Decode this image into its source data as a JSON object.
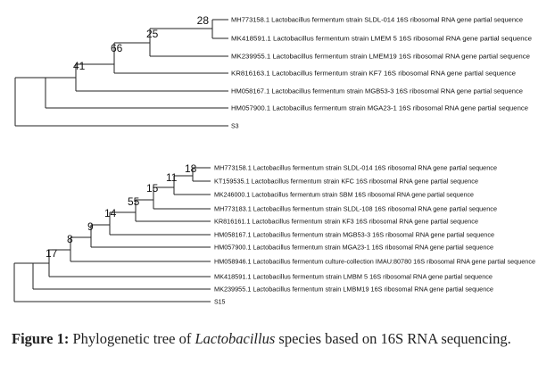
{
  "caption": {
    "label": "Figure 1:",
    "text_before": " Phylogenetic tree of ",
    "genus": "Lactobacillus",
    "text_after": " species based on 16S RNA sequencing."
  },
  "tree_1": {
    "leaves": [
      "MH773158.1 Lactobacillus fermentum strain SLDL-014 16S ribosomal RNA gene partial sequence",
      "MK418591.1 Lactobacillus fermentum strain LMEM 5 16S ribosomal RNA gene partial sequence",
      "MK239955.1 Lactobacillus fermentum strain LMEM19 16S ribosomal RNA gene partial sequence",
      "KR816163.1 Lactobacillus fermentum strain KF7 16S ribosomal RNA gene partial sequence",
      "HM058167.1 Lactobacillus fermentum strain MGB53-3 16S ribosomal RNA gene partial sequence",
      "HM057900.1 Lactobacillus fermentum strain MGA23-1 16S ribosomal RNA gene partial sequence",
      "S3"
    ],
    "bootstrap": [
      "28",
      "25",
      "66",
      "41"
    ]
  },
  "tree_2": {
    "leaves": [
      "MH773158.1 Lactobacillus fermentum strain SLDL-014 16S ribosomal RNA gene partial sequence",
      "KT159535.1 Lactobacillus fermentum strain KFC 16S ribosomal RNA gene partial sequence",
      "MK246000.1 Lactobacillus fermentum strain SBM 16S ribosomal RNA gene partial sequence",
      "MH773183.1 Lactobacillus fermentum strain SLDL-108 16S ribosomal RNA gene partial sequence",
      "KR816161.1 Lactobacillus fermentum strain KF3 16S ribosomal RNA gene partial sequence",
      "HM058167.1 Lactobacillus fermentum strain MGB53-3 16S ribosomal RNA gene partial sequence",
      "HM057900.1 Lactobacillus fermentum strain MGA23-1 16S ribosomal RNA gene partial sequence",
      "HM058946.1 Lactobacillus fermentum culture-collection IMAU:80780 16S ribosomal RNA gene partial sequence",
      "MK418591.1 Lactobacillus fermentum strain LMBM 5 16S ribosomal RNA gene partial sequence",
      "MK239955.1 Lactobacillus fermentum strain LMBM19 16S ribosomal RNA gene partial sequence",
      "S15"
    ],
    "bootstrap": [
      "18",
      "11",
      "15",
      "55",
      "14",
      "9",
      "8",
      "17"
    ]
  }
}
